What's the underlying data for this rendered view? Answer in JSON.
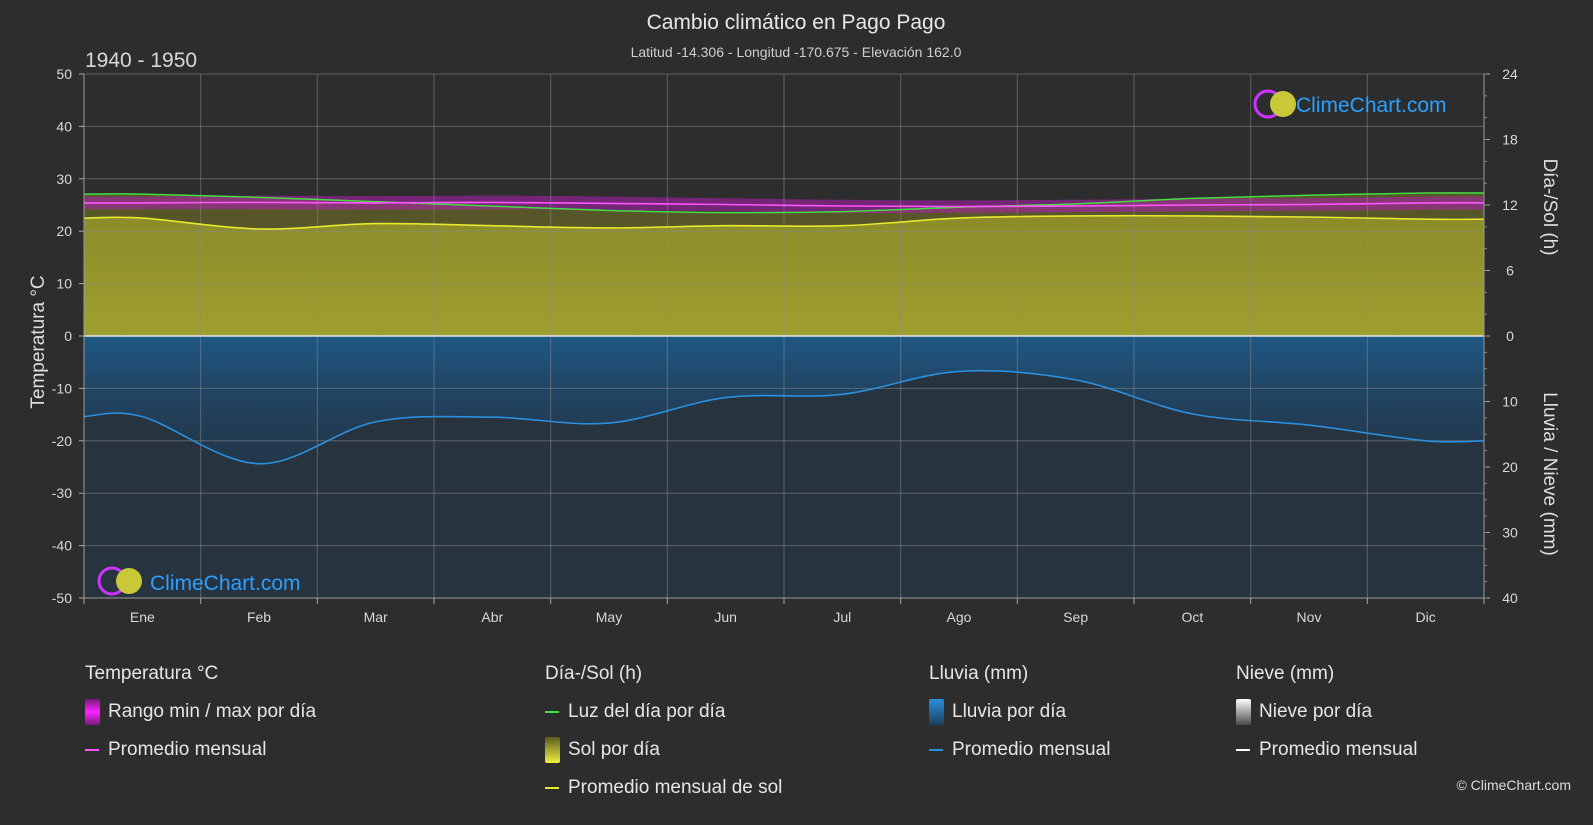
{
  "chart_data": {
    "type": "line",
    "title": "Cambio climático en Pago Pago",
    "subtitle": "Latitud -14.306 - Longitud -170.675 - Elevación 162.0",
    "period": "1940 - 1950",
    "categories": [
      "Ene",
      "Feb",
      "Mar",
      "Abr",
      "May",
      "Jun",
      "Jul",
      "Ago",
      "Sep",
      "Oct",
      "Nov",
      "Dic"
    ],
    "axes": {
      "left": {
        "label": "Temperatura °C",
        "range": [
          -50,
          50
        ],
        "ticks": [
          50,
          40,
          30,
          20,
          10,
          0,
          -10,
          -20,
          -30,
          -40,
          -50
        ]
      },
      "right_top": {
        "label": "Día-/Sol (h)",
        "range": [
          0,
          24
        ],
        "ticks": [
          24,
          18,
          12,
          6,
          0
        ]
      },
      "right_bottom": {
        "label": "Lluvia / Nieve (mm)",
        "range": [
          0,
          40
        ],
        "ticks": [
          0,
          10,
          20,
          30,
          40
        ]
      }
    },
    "grid": true,
    "series": [
      {
        "name": "Luz del día por día",
        "axis": "right_top",
        "color": "#44dd44",
        "values": [
          13.0,
          12.7,
          12.3,
          11.9,
          11.5,
          11.3,
          11.4,
          11.8,
          12.1,
          12.6,
          12.9,
          13.1
        ]
      },
      {
        "name": "Promedio mensual de sol",
        "axis": "right_top",
        "color": "#e8e830",
        "values": [
          10.8,
          9.8,
          10.3,
          10.1,
          9.9,
          10.1,
          10.1,
          10.8,
          11.0,
          11.0,
          10.9,
          10.7
        ]
      },
      {
        "name": "Promedio mensual",
        "axis": "left",
        "color": "#ff55ff",
        "values": [
          25.4,
          25.5,
          25.4,
          25.5,
          25.3,
          25.1,
          24.8,
          24.7,
          24.8,
          25.0,
          25.1,
          25.4
        ]
      },
      {
        "name": "Promedio mensual",
        "axis": "right_bottom",
        "color": "#2a8fdd",
        "values": [
          12.3,
          19.5,
          13.1,
          12.4,
          13.3,
          9.4,
          8.9,
          5.4,
          6.7,
          11.9,
          13.6,
          16.0
        ]
      }
    ],
    "temperature_range": {
      "min": [
        24.2,
        24.2,
        24.1,
        24.2,
        24.0,
        23.8,
        23.5,
        23.5,
        23.6,
        23.8,
        23.9,
        24.1
      ],
      "max": [
        26.6,
        26.8,
        26.7,
        26.8,
        26.6,
        26.3,
        26.0,
        25.9,
        26.0,
        26.2,
        26.3,
        26.6
      ]
    }
  },
  "branding": {
    "logo_text": "ClimeChart.com",
    "copyright": "© ClimeChart.com"
  },
  "legend": {
    "temperature": {
      "title": "Temperatura °C",
      "range_label": "Rango min / max por día",
      "avg_label": "Promedio mensual"
    },
    "sun": {
      "title": "Día-/Sol (h)",
      "daylight_label": "Luz del día por día",
      "sun_label": "Sol por día",
      "avg_label": "Promedio mensual de sol"
    },
    "rain": {
      "title": "Lluvia (mm)",
      "day_label": "Lluvia por día",
      "avg_label": "Promedio mensual"
    },
    "snow": {
      "title": "Nieve (mm)",
      "day_label": "Nieve por día",
      "avg_label": "Promedio mensual"
    }
  },
  "colors": {
    "background": "#2d2d2d",
    "daylight": "#44dd44",
    "sun_fill": "#9a9a2a",
    "sun_avg": "#e8e830",
    "temp_avg": "#ff55ff",
    "temp_range": "#cc22cc",
    "rain_fill": "#1f5f8f",
    "rain_avg": "#2a8fdd",
    "snow": "#ffffff"
  }
}
